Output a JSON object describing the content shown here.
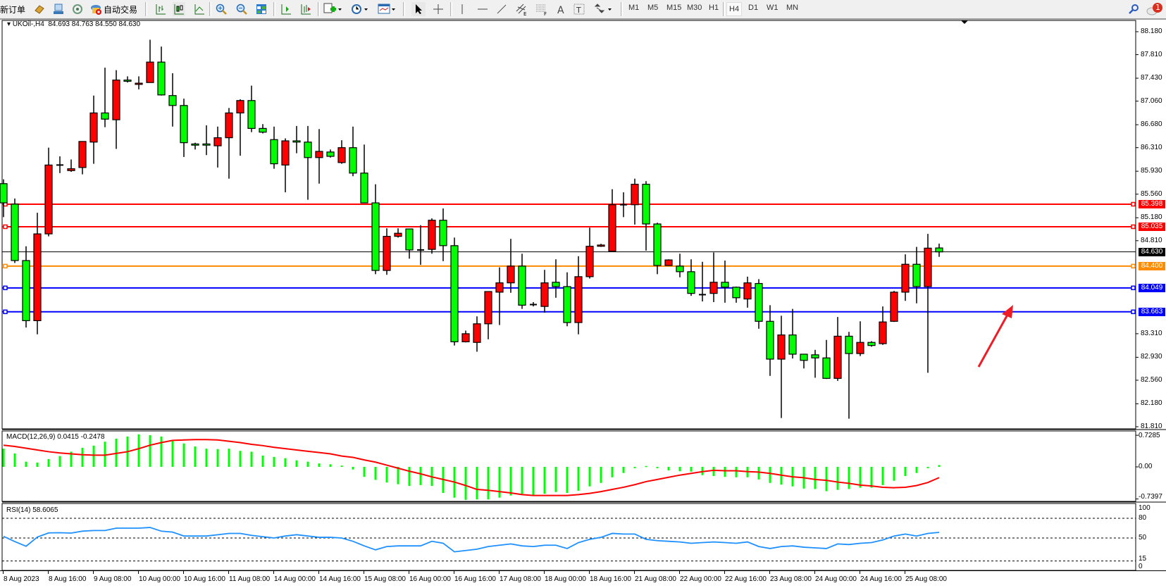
{
  "toolbar": {
    "new_order_label": "新订单",
    "auto_trading_label": "自动交易",
    "timeframes": [
      "M1",
      "M5",
      "M15",
      "M30",
      "H1",
      "H4",
      "D1",
      "W1",
      "MN"
    ],
    "active_timeframe": "H4",
    "notification_count": "1",
    "icons": [
      "market-watch-icon",
      "navigator-icon",
      "signals-icon",
      "auto-trading-icon",
      "bar-chart-icon",
      "candlestick-icon",
      "line-chart-icon",
      "zoom-in-icon",
      "zoom-out-icon",
      "tile-windows-icon",
      "chart-shift-icon",
      "autoscroll-icon",
      "indicators-icon",
      "periods-icon",
      "templates-icon",
      "cursor-icon",
      "crosshair-icon",
      "vertical-line-icon",
      "horizontal-line-icon",
      "trendline-icon",
      "equidistant-channel-icon",
      "fibonacci-icon",
      "text-icon",
      "text-label-icon",
      "arrows-icon",
      "search-icon",
      "notifications-icon"
    ]
  },
  "chart": {
    "legend": "UKOil-,H4  84.693 84.763 84.550 84.630",
    "macd_label": "MACD(12,26,9) 0.0415 -0.2478",
    "rsi_label": "RSI(14) 58.6065"
  },
  "chart_data": [
    {
      "type": "candlestick",
      "symbol": "UKOil-",
      "timeframe": "H4",
      "ohlc_format": [
        "open",
        "high",
        "low",
        "close"
      ],
      "up_color": "#ff0000",
      "down_color": "#00ff00",
      "ylim": [
        81.81,
        88.18
      ],
      "y_ticks": [
        "88.180",
        "87.810",
        "87.430",
        "87.060",
        "86.680",
        "86.310",
        "85.930",
        "85.560",
        "85.180",
        "84.810",
        "83.310",
        "82.930",
        "82.560",
        "82.180",
        "81.810"
      ],
      "x_tick_labels": [
        "8 Aug 2023",
        "8 Aug 16:00",
        "9 Aug 08:00",
        "10 Aug 00:00",
        "10 Aug 16:00",
        "11 Aug 08:00",
        "14 Aug 00:00",
        "14 Aug 16:00",
        "15 Aug 08:00",
        "16 Aug 00:00",
        "16 Aug 16:00",
        "17 Aug 08:00",
        "18 Aug 00:00",
        "18 Aug 16:00",
        "21 Aug 08:00",
        "22 Aug 00:00",
        "22 Aug 16:00",
        "23 Aug 08:00",
        "24 Aug 00:00",
        "24 Aug 16:00",
        "25 Aug 08:00"
      ],
      "candles": [
        [
          85.73,
          85.8,
          85.19,
          85.42
        ],
        [
          85.4,
          85.49,
          84.45,
          84.49
        ],
        [
          84.49,
          84.72,
          83.41,
          83.52
        ],
        [
          83.52,
          85.26,
          83.3,
          84.92
        ],
        [
          84.92,
          86.31,
          84.88,
          86.03
        ],
        [
          86.03,
          86.17,
          85.9,
          86.03
        ],
        [
          85.94,
          86.12,
          85.92,
          85.97
        ],
        [
          85.99,
          86.41,
          85.88,
          86.41
        ],
        [
          86.4,
          87.15,
          86.05,
          86.87
        ],
        [
          86.87,
          87.6,
          86.64,
          86.77
        ],
        [
          86.76,
          87.56,
          86.29,
          87.4
        ],
        [
          87.4,
          87.46,
          87.36,
          87.38
        ],
        [
          87.33,
          87.46,
          87.25,
          87.35
        ],
        [
          87.36,
          88.05,
          87.36,
          87.69
        ],
        [
          87.69,
          87.94,
          87.15,
          87.16
        ],
        [
          87.15,
          87.51,
          86.65,
          86.99
        ],
        [
          86.99,
          87.1,
          86.16,
          86.39
        ],
        [
          86.37,
          86.39,
          86.28,
          86.35
        ],
        [
          86.37,
          86.67,
          86.19,
          86.35
        ],
        [
          86.34,
          86.65,
          85.99,
          86.47
        ],
        [
          86.47,
          86.95,
          85.81,
          86.87
        ],
        [
          86.87,
          87.09,
          86.18,
          87.07
        ],
        [
          87.07,
          87.31,
          86.56,
          86.62
        ],
        [
          86.62,
          86.69,
          86.54,
          86.56
        ],
        [
          86.44,
          86.65,
          85.97,
          86.05
        ],
        [
          86.03,
          86.46,
          85.59,
          86.42
        ],
        [
          86.42,
          86.66,
          86.22,
          86.4
        ],
        [
          86.4,
          86.66,
          85.47,
          86.15
        ],
        [
          86.15,
          86.61,
          85.73,
          86.25
        ],
        [
          86.24,
          86.28,
          86.15,
          86.17
        ],
        [
          86.07,
          86.43,
          86.05,
          86.31
        ],
        [
          86.31,
          86.65,
          85.85,
          85.9
        ],
        [
          85.9,
          86.36,
          85.42,
          85.42
        ],
        [
          85.42,
          85.72,
          84.27,
          84.33
        ],
        [
          84.33,
          85.01,
          84.26,
          84.88
        ],
        [
          84.88,
          85.01,
          84.86,
          84.93
        ],
        [
          85.0,
          85.0,
          84.52,
          84.66
        ],
        [
          84.66,
          85.06,
          84.42,
          84.66
        ],
        [
          84.67,
          85.17,
          84.6,
          85.14
        ],
        [
          85.14,
          85.33,
          84.48,
          84.73
        ],
        [
          84.73,
          84.86,
          83.12,
          83.18
        ],
        [
          83.18,
          83.36,
          83.17,
          83.31
        ],
        [
          83.17,
          83.59,
          83.02,
          83.47
        ],
        [
          83.47,
          83.99,
          83.22,
          83.99
        ],
        [
          83.98,
          84.38,
          83.45,
          84.13
        ],
        [
          84.13,
          84.84,
          83.97,
          84.4
        ],
        [
          84.4,
          84.6,
          83.71,
          83.77
        ],
        [
          83.78,
          83.82,
          83.75,
          83.77
        ],
        [
          83.75,
          84.34,
          83.65,
          84.13
        ],
        [
          84.14,
          84.51,
          83.89,
          84.07
        ],
        [
          84.07,
          84.3,
          83.43,
          83.49
        ],
        [
          83.49,
          84.56,
          83.3,
          84.23
        ],
        [
          84.23,
          85.02,
          84.2,
          84.72
        ],
        [
          84.72,
          84.76,
          84.71,
          84.74
        ],
        [
          84.64,
          85.64,
          84.64,
          85.39
        ],
        [
          85.39,
          85.59,
          85.19,
          85.39
        ],
        [
          85.39,
          85.81,
          85.07,
          85.72
        ],
        [
          85.72,
          85.77,
          84.65,
          85.08
        ],
        [
          85.08,
          85.1,
          84.27,
          84.41
        ],
        [
          84.41,
          84.51,
          84.41,
          84.5
        ],
        [
          84.4,
          84.6,
          84.22,
          84.31
        ],
        [
          84.31,
          84.51,
          83.92,
          83.96
        ],
        [
          83.94,
          84.47,
          83.83,
          83.94
        ],
        [
          83.96,
          84.62,
          83.82,
          84.14
        ],
        [
          84.14,
          84.49,
          83.81,
          84.06
        ],
        [
          84.06,
          84.07,
          83.81,
          83.89
        ],
        [
          83.87,
          84.23,
          83.73,
          84.13
        ],
        [
          84.12,
          84.19,
          83.39,
          83.51
        ],
        [
          83.51,
          83.77,
          82.63,
          82.9
        ],
        [
          82.9,
          83.6,
          81.95,
          83.29
        ],
        [
          83.29,
          83.71,
          82.91,
          82.98
        ],
        [
          82.98,
          82.98,
          82.75,
          82.88
        ],
        [
          82.97,
          83.05,
          82.6,
          82.92
        ],
        [
          82.92,
          83.21,
          82.58,
          82.59
        ],
        [
          82.59,
          83.58,
          82.55,
          83.27
        ],
        [
          83.27,
          83.34,
          81.94,
          82.99
        ],
        [
          82.99,
          83.51,
          82.95,
          83.17
        ],
        [
          83.17,
          83.19,
          83.1,
          83.12
        ],
        [
          83.15,
          83.75,
          83.13,
          83.5
        ],
        [
          83.51,
          84.0,
          83.5,
          83.98
        ],
        [
          83.98,
          84.59,
          83.84,
          84.43
        ],
        [
          84.43,
          84.71,
          83.8,
          84.07
        ],
        [
          84.07,
          84.92,
          82.68,
          84.69
        ],
        [
          84.693,
          84.763,
          84.55,
          84.63
        ]
      ],
      "price_lines": [
        {
          "value": "85.398",
          "color": "#ff0000"
        },
        {
          "value": "85.035",
          "color": "#ff0000"
        },
        {
          "value": "84.400",
          "color": "#ff8c00"
        },
        {
          "value": "84.049",
          "color": "#0000ff"
        },
        {
          "value": "83.663",
          "color": "#0000ff"
        }
      ],
      "current_price": {
        "value": "84.630",
        "color": "#000000"
      },
      "annotation": {
        "type": "arrow",
        "color": "#ee1c24",
        "direction": "up-right"
      }
    },
    {
      "type": "bar+line",
      "name": "MACD(12,26,9)",
      "ylim": [
        -0.7397,
        0.7285
      ],
      "y_ticks": [
        "0.7285",
        "0.00",
        "-0.7397"
      ],
      "histogram_color": "#00ff00",
      "signal_color": "#ff0000",
      "histogram": [
        0.42,
        0.31,
        0.12,
        0.1,
        0.18,
        0.25,
        0.35,
        0.44,
        0.49,
        0.58,
        0.65,
        0.7,
        0.75,
        0.73,
        0.7,
        0.6,
        0.54,
        0.47,
        0.42,
        0.41,
        0.42,
        0.37,
        0.35,
        0.26,
        0.23,
        0.2,
        0.15,
        0.12,
        0.08,
        0.06,
        0.03,
        -0.06,
        -0.23,
        -0.3,
        -0.36,
        -0.4,
        -0.44,
        -0.42,
        -0.44,
        -0.6,
        -0.71,
        -0.76,
        -0.75,
        -0.75,
        -0.71,
        -0.66,
        -0.64,
        -0.66,
        -0.62,
        -0.58,
        -0.6,
        -0.55,
        -0.45,
        -0.37,
        -0.24,
        -0.14,
        -0.03,
        0.02,
        -0.03,
        -0.08,
        -0.1,
        -0.11,
        -0.19,
        -0.21,
        -0.23,
        -0.24,
        -0.24,
        -0.29,
        -0.37,
        -0.41,
        -0.45,
        -0.5,
        -0.51,
        -0.56,
        -0.53,
        -0.51,
        -0.48,
        -0.48,
        -0.42,
        -0.32,
        -0.21,
        -0.14,
        -0.03,
        0.0415
      ],
      "signal": [
        0.5,
        0.47,
        0.43,
        0.39,
        0.35,
        0.32,
        0.3,
        0.28,
        0.27,
        0.27,
        0.31,
        0.35,
        0.42,
        0.5,
        0.56,
        0.61,
        0.62,
        0.63,
        0.63,
        0.62,
        0.59,
        0.56,
        0.52,
        0.49,
        0.45,
        0.42,
        0.39,
        0.36,
        0.33,
        0.3,
        0.25,
        0.22,
        0.16,
        0.11,
        0.04,
        -0.03,
        -0.1,
        -0.16,
        -0.23,
        -0.29,
        -0.35,
        -0.43,
        -0.52,
        -0.54,
        -0.57,
        -0.6,
        -0.64,
        -0.66,
        -0.66,
        -0.66,
        -0.66,
        -0.64,
        -0.61,
        -0.57,
        -0.52,
        -0.47,
        -0.41,
        -0.34,
        -0.29,
        -0.24,
        -0.19,
        -0.15,
        -0.11,
        -0.08,
        -0.09,
        -0.09,
        -0.11,
        -0.12,
        -0.15,
        -0.19,
        -0.23,
        -0.25,
        -0.29,
        -0.31,
        -0.35,
        -0.38,
        -0.42,
        -0.44,
        -0.47,
        -0.48,
        -0.47,
        -0.43,
        -0.36,
        -0.2478
      ]
    },
    {
      "type": "line",
      "name": "RSI(14)",
      "ylim": [
        0,
        100
      ],
      "y_ticks": [
        "100",
        "80",
        "50",
        "15",
        "0"
      ],
      "levels": [
        80,
        50,
        15
      ],
      "color": "#1e90ff",
      "values": [
        52.5,
        44.6,
        37.5,
        51.4,
        57.8,
        58,
        57.5,
        60.4,
        61.4,
        61.4,
        65,
        65,
        65,
        66,
        60.4,
        59,
        53,
        53,
        53,
        55,
        57,
        57,
        54,
        52,
        50,
        53,
        55,
        53,
        51,
        51,
        50,
        45,
        38,
        32,
        37,
        38,
        38,
        38,
        45,
        42,
        29,
        31,
        33,
        37,
        39,
        41,
        38,
        37,
        39,
        39,
        34,
        43,
        48,
        51,
        57,
        56,
        56,
        48,
        46,
        45,
        44,
        42,
        43,
        44,
        43,
        42,
        44,
        37,
        34,
        37,
        38,
        36,
        35,
        34,
        41,
        40,
        42,
        43,
        47,
        53,
        56,
        53,
        57,
        58.6065
      ]
    }
  ]
}
